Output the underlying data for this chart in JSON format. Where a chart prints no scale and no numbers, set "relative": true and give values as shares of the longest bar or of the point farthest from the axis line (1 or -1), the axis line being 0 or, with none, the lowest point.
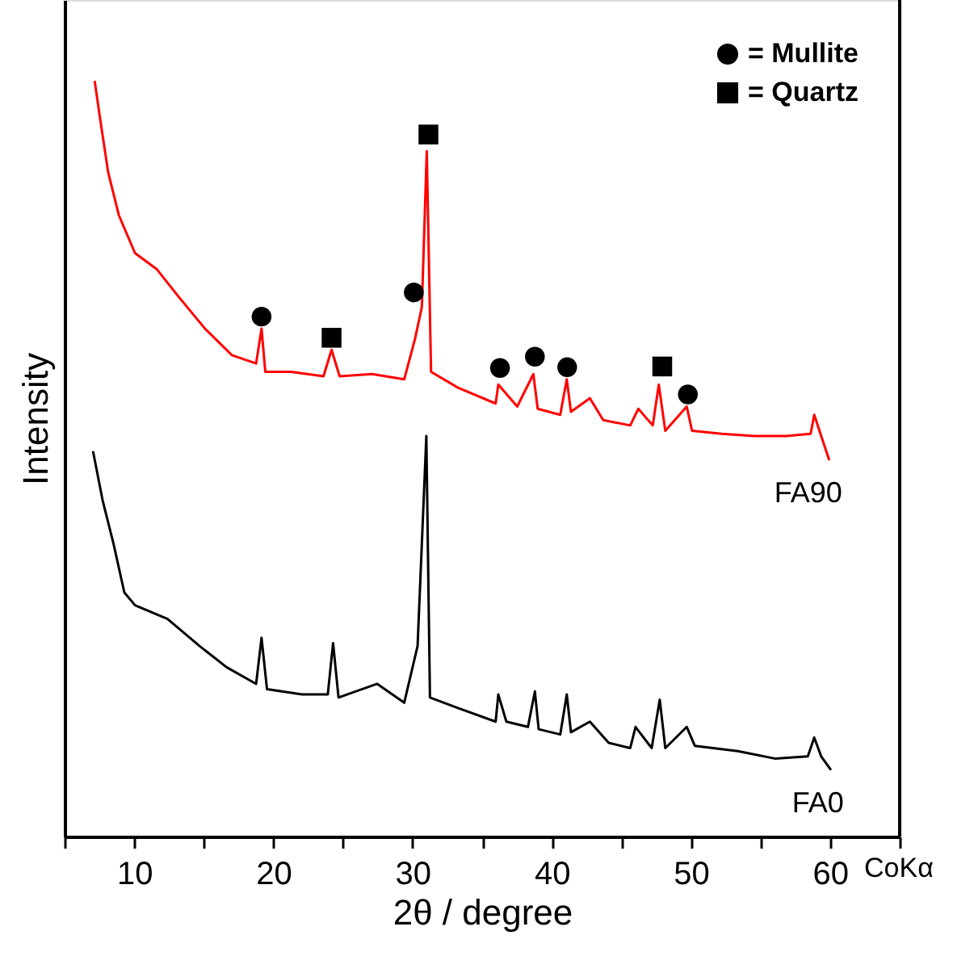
{
  "chart_data": {
    "type": "line",
    "xlabel": "2θ / degree",
    "ylabel": "Intensity",
    "relative": true,
    "grid": false,
    "legend": "top right",
    "xlim": [
      5,
      65
    ],
    "xticks": [
      {
        "value": 5,
        "label": null
      },
      10,
      {
        "value": 15,
        "label": null
      },
      20,
      {
        "value": 25,
        "label": null
      },
      30,
      {
        "value": 35,
        "label": null
      },
      40,
      {
        "value": 45,
        "label": null
      },
      50,
      {
        "value": 55,
        "label": null
      },
      60,
      {
        "value": 65,
        "label": null
      }
    ],
    "annotations": [
      "CoKα"
    ],
    "series": [
      {
        "name": "FA90",
        "type": "line",
        "color": "#ff0000",
        "marker": "none",
        "line_style": "solid",
        "x": [
          7.16,
          7.55,
          8.13,
          8.9,
          10.06,
          11.61,
          13.16,
          15.09,
          17.02,
          18.76,
          19.15,
          19.42,
          21.28,
          23.6,
          24.18,
          24.76,
          27.08,
          29.4,
          30.17,
          30.67,
          31.02,
          31.33,
          33.26,
          35.97,
          36.16,
          37.52,
          38.68,
          38.99,
          40.61,
          41.08,
          41.38,
          42.74,
          43.7,
          45.64,
          46.22,
          47.26,
          47.69,
          48.16,
          49.7,
          50.08,
          52.22,
          54.54,
          56.86,
          58.6,
          58.86,
          59.36,
          59.94
        ],
        "values": [
          1.0,
          0.95,
          0.879,
          0.822,
          0.772,
          0.751,
          0.715,
          0.672,
          0.637,
          0.626,
          0.672,
          0.615,
          0.615,
          0.609,
          0.644,
          0.609,
          0.612,
          0.605,
          0.658,
          0.701,
          0.907,
          0.615,
          0.594,
          0.573,
          0.598,
          0.569,
          0.612,
          0.566,
          0.558,
          0.605,
          0.562,
          0.58,
          0.551,
          0.544,
          0.566,
          0.544,
          0.598,
          0.537,
          0.569,
          0.537,
          0.533,
          0.53,
          0.53,
          0.533,
          0.558,
          0.53,
          0.498
        ]
      },
      {
        "name": "FA0",
        "type": "line",
        "color": "#000000",
        "marker": "none",
        "line_style": "solid",
        "x": [
          7.04,
          7.74,
          8.52,
          9.29,
          10.06,
          12.38,
          14.7,
          16.64,
          18.76,
          19.15,
          19.54,
          22.05,
          23.91,
          24.29,
          24.68,
          27.46,
          29.4,
          30.36,
          30.99,
          31.25,
          33.26,
          35.97,
          36.16,
          36.74,
          38.29,
          38.79,
          39.06,
          40.61,
          41.08,
          41.38,
          42.74,
          44.09,
          45.64,
          46.02,
          47.18,
          47.76,
          48.16,
          49.7,
          50.28,
          53.37,
          56.08,
          58.4,
          58.86,
          59.36,
          60.06
        ],
        "values": [
          0.51,
          0.444,
          0.387,
          0.323,
          0.306,
          0.288,
          0.252,
          0.224,
          0.202,
          0.263,
          0.195,
          0.188,
          0.188,
          0.256,
          0.184,
          0.202,
          0.177,
          0.252,
          0.53,
          0.184,
          0.17,
          0.152,
          0.188,
          0.152,
          0.145,
          0.192,
          0.142,
          0.135,
          0.188,
          0.138,
          0.152,
          0.124,
          0.117,
          0.145,
          0.117,
          0.181,
          0.117,
          0.145,
          0.12,
          0.113,
          0.103,
          0.106,
          0.131,
          0.106,
          0.088
        ]
      },
      {
        "name": "= Mullite",
        "type": "scatter",
        "color": "#000000",
        "marker": "circle",
        "x": [
          19.15,
          30.09,
          36.28,
          38.79,
          41.11,
          49.78
        ],
        "values": [
          0.688,
          0.72,
          0.62,
          0.635,
          0.621,
          0.585
        ]
      },
      {
        "name": "= Quartz",
        "type": "scatter",
        "color": "#000000",
        "marker": "square",
        "x": [
          24.18,
          31.14,
          47.94
        ],
        "values": [
          0.66,
          0.929,
          0.622
        ]
      }
    ]
  }
}
